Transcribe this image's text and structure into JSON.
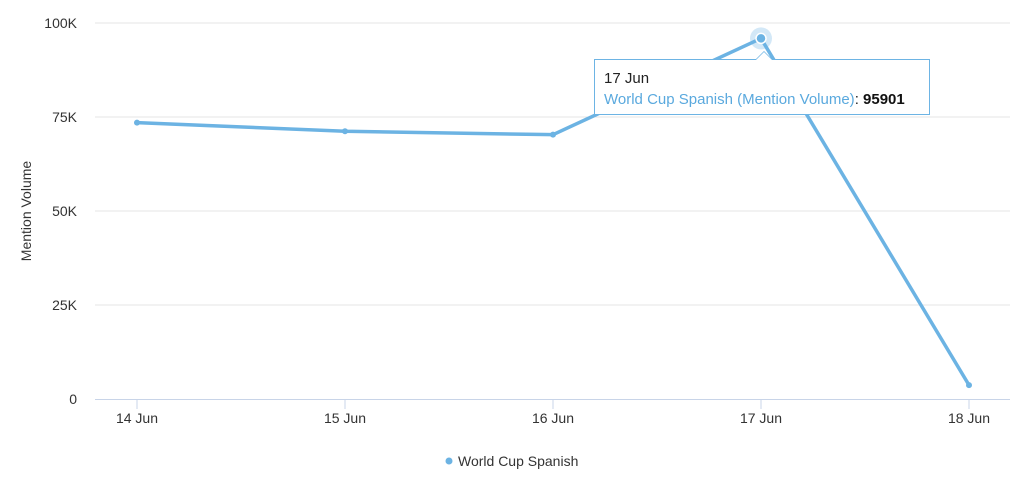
{
  "chart_data": {
    "type": "line",
    "categories": [
      "14 Jun",
      "15 Jun",
      "16 Jun",
      "17 Jun",
      "18 Jun"
    ],
    "series": [
      {
        "name": "World Cup Spanish",
        "values": [
          73500,
          71200,
          70300,
          95901,
          3700
        ]
      }
    ],
    "ylabel": "Mention Volume",
    "ylim": [
      0,
      100000
    ],
    "yticks": [
      0,
      25000,
      50000,
      75000,
      100000
    ],
    "ytick_labels": [
      "0",
      "25K",
      "50K",
      "75K",
      "100K"
    ],
    "grid": true,
    "legend": "bottom-center",
    "color": "#6cb3e3",
    "tooltip": {
      "date": "17 Jun",
      "series_label": "World Cup Spanish (Mention Volume)",
      "separator": ":",
      "value": "95901",
      "highlighted_index": 3
    }
  }
}
